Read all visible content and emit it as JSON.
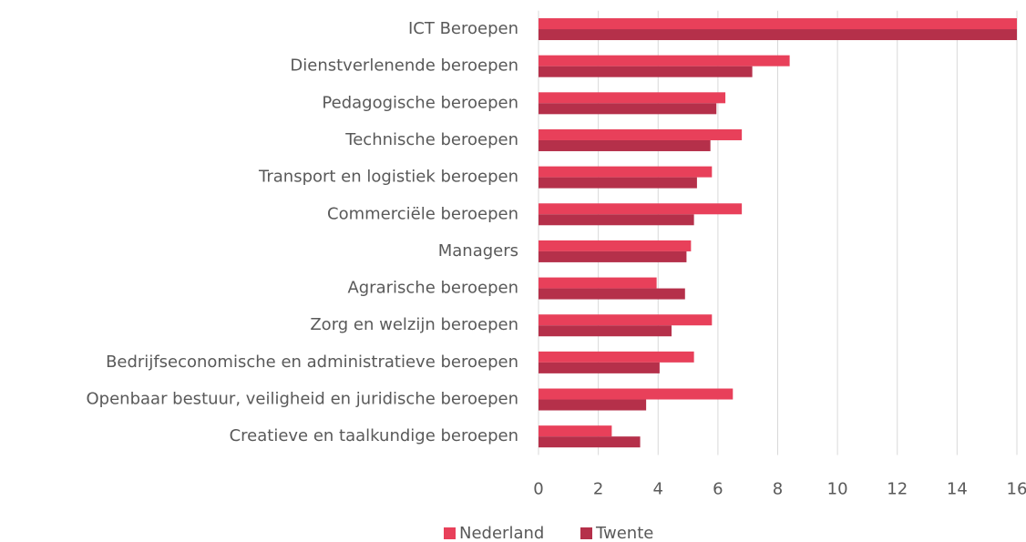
{
  "chart_data": {
    "type": "bar",
    "orientation": "horizontal",
    "categories": [
      "ICT Beroepen",
      "Dienstverlenende beroepen",
      "Pedagogische beroepen",
      "Technische beroepen",
      "Transport en logistiek beroepen",
      "Commerciële beroepen",
      "Managers",
      "Agrarische beroepen",
      "Zorg en welzijn beroepen",
      "Bedrijfseconomische en administratieve beroepen",
      "Openbaar bestuur, veiligheid en juridische beroepen",
      "Creatieve en taalkundige beroepen"
    ],
    "series": [
      {
        "name": "Nederland",
        "color": "#e8405a",
        "values": [
          16,
          8.4,
          6.25,
          6.8,
          5.8,
          6.8,
          5.1,
          3.95,
          5.8,
          5.2,
          6.5,
          2.45
        ]
      },
      {
        "name": "Twente",
        "color": "#b5304a",
        "values": [
          16,
          7.15,
          5.95,
          5.75,
          5.3,
          5.2,
          4.95,
          4.9,
          4.45,
          4.05,
          3.6,
          3.4
        ]
      }
    ],
    "xlim": [
      0,
      16
    ],
    "xticks": [
      0,
      2,
      4,
      6,
      8,
      10,
      12,
      14,
      16
    ],
    "grid": true,
    "legend": "bottom"
  }
}
